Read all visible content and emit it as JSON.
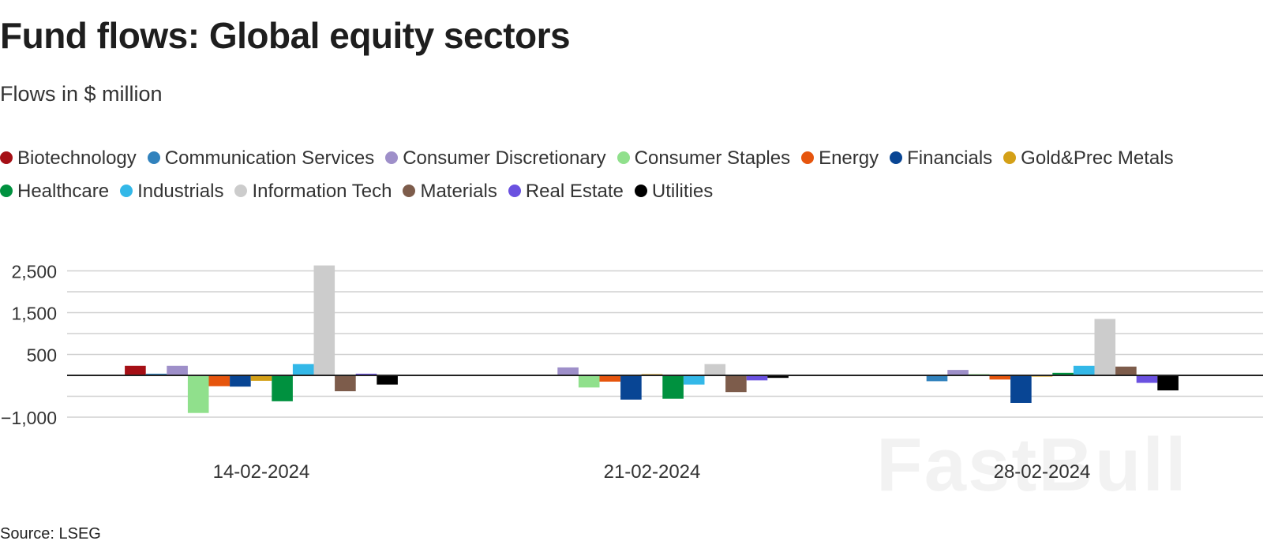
{
  "header": {
    "title": "Fund flows: Global equity sectors",
    "subtitle": "Flows in $ million"
  },
  "footer": {
    "source": "Source: LSEG"
  },
  "watermark": {
    "text": "FastBull"
  },
  "chart_data": {
    "type": "bar",
    "title": "Fund flows: Global equity sectors",
    "subtitle": "Flows in $ million",
    "xlabel": "",
    "ylabel": "",
    "categories": [
      "14-02-2024",
      "21-02-2024",
      "28-02-2024"
    ],
    "yticks": [
      -1000,
      500,
      1500,
      2500
    ],
    "ytick_labels": [
      "−1,000",
      "500",
      "1,500",
      "2,500"
    ],
    "ylim": [
      -1250,
      2650
    ],
    "grid": true,
    "legend_position": "top",
    "series": [
      {
        "name": "Biotechnology",
        "color": "#a50f15",
        "values": [
          230,
          0,
          0
        ]
      },
      {
        "name": "Communication Services",
        "color": "#3182bd",
        "values": [
          40,
          0,
          -140
        ]
      },
      {
        "name": "Consumer Discretionary",
        "color": "#9e8fc9",
        "values": [
          230,
          190,
          130
        ]
      },
      {
        "name": "Consumer Staples",
        "color": "#90e08c",
        "values": [
          -900,
          -290,
          30
        ]
      },
      {
        "name": "Energy",
        "color": "#e6550d",
        "values": [
          -260,
          -150,
          -100
        ]
      },
      {
        "name": "Financials",
        "color": "#084594",
        "values": [
          -270,
          -580,
          -660
        ]
      },
      {
        "name": "Gold&Prec Metals",
        "color": "#d4a017",
        "values": [
          -130,
          30,
          -30
        ]
      },
      {
        "name": "Healthcare",
        "color": "#00913f",
        "values": [
          -620,
          -560,
          60
        ]
      },
      {
        "name": "Industrials",
        "color": "#33b8e8",
        "values": [
          270,
          -220,
          230
        ]
      },
      {
        "name": "Information Tech",
        "color": "#cccccc",
        "values": [
          2630,
          270,
          1350
        ]
      },
      {
        "name": "Materials",
        "color": "#7d5c4b",
        "values": [
          -380,
          -400,
          210
        ]
      },
      {
        "name": "Real Estate",
        "color": "#6a51e0",
        "values": [
          40,
          -120,
          -180
        ]
      },
      {
        "name": "Utilities",
        "color": "#000000",
        "values": [
          -220,
          -60,
          -360
        ]
      }
    ]
  }
}
